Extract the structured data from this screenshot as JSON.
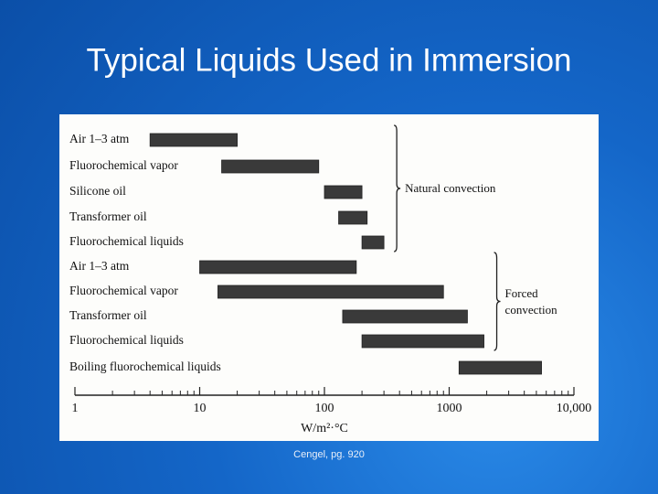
{
  "title": "Typical Liquids Used in Immersion",
  "caption": "Cengel, pg. 920",
  "chart_data": {
    "type": "range-bar",
    "log_x": true,
    "color": "#3a3a3a",
    "xlabel": "W/m²·°C",
    "xlim": [
      1,
      10000
    ],
    "xticks": [
      1,
      10,
      100,
      1000,
      {
        "value": 10000,
        "label": "10,000"
      }
    ],
    "minor_xticks": [
      2,
      3,
      4,
      5,
      6,
      7,
      8,
      9,
      20,
      30,
      40,
      50,
      60,
      70,
      80,
      90,
      200,
      300,
      400,
      500,
      600,
      700,
      800,
      900,
      2000,
      3000,
      4000,
      5000,
      6000,
      7000,
      8000,
      9000
    ],
    "groups": [
      {
        "label": "Natural convection",
        "categories": [
          "Air 1–3 atm",
          "Fluorochemical vapor",
          "Silicone oil",
          "Transformer oil",
          "Fluorochemical liquids"
        ],
        "starts": [
          4,
          15,
          100,
          130,
          200
        ],
        "ends": [
          20,
          90,
          200,
          220,
          300
        ]
      },
      {
        "label": "Forced convection",
        "categories": [
          "Air 1–3 atm",
          "Fluorochemical vapor",
          "Transformer oil",
          "Fluorochemical liquids"
        ],
        "starts": [
          10,
          14,
          140,
          200
        ],
        "ends": [
          180,
          900,
          1400,
          1900
        ]
      },
      {
        "categories": [
          "Boiling fluorochemical liquids"
        ],
        "starts": [
          1200
        ],
        "ends": [
          5500
        ]
      }
    ]
  }
}
